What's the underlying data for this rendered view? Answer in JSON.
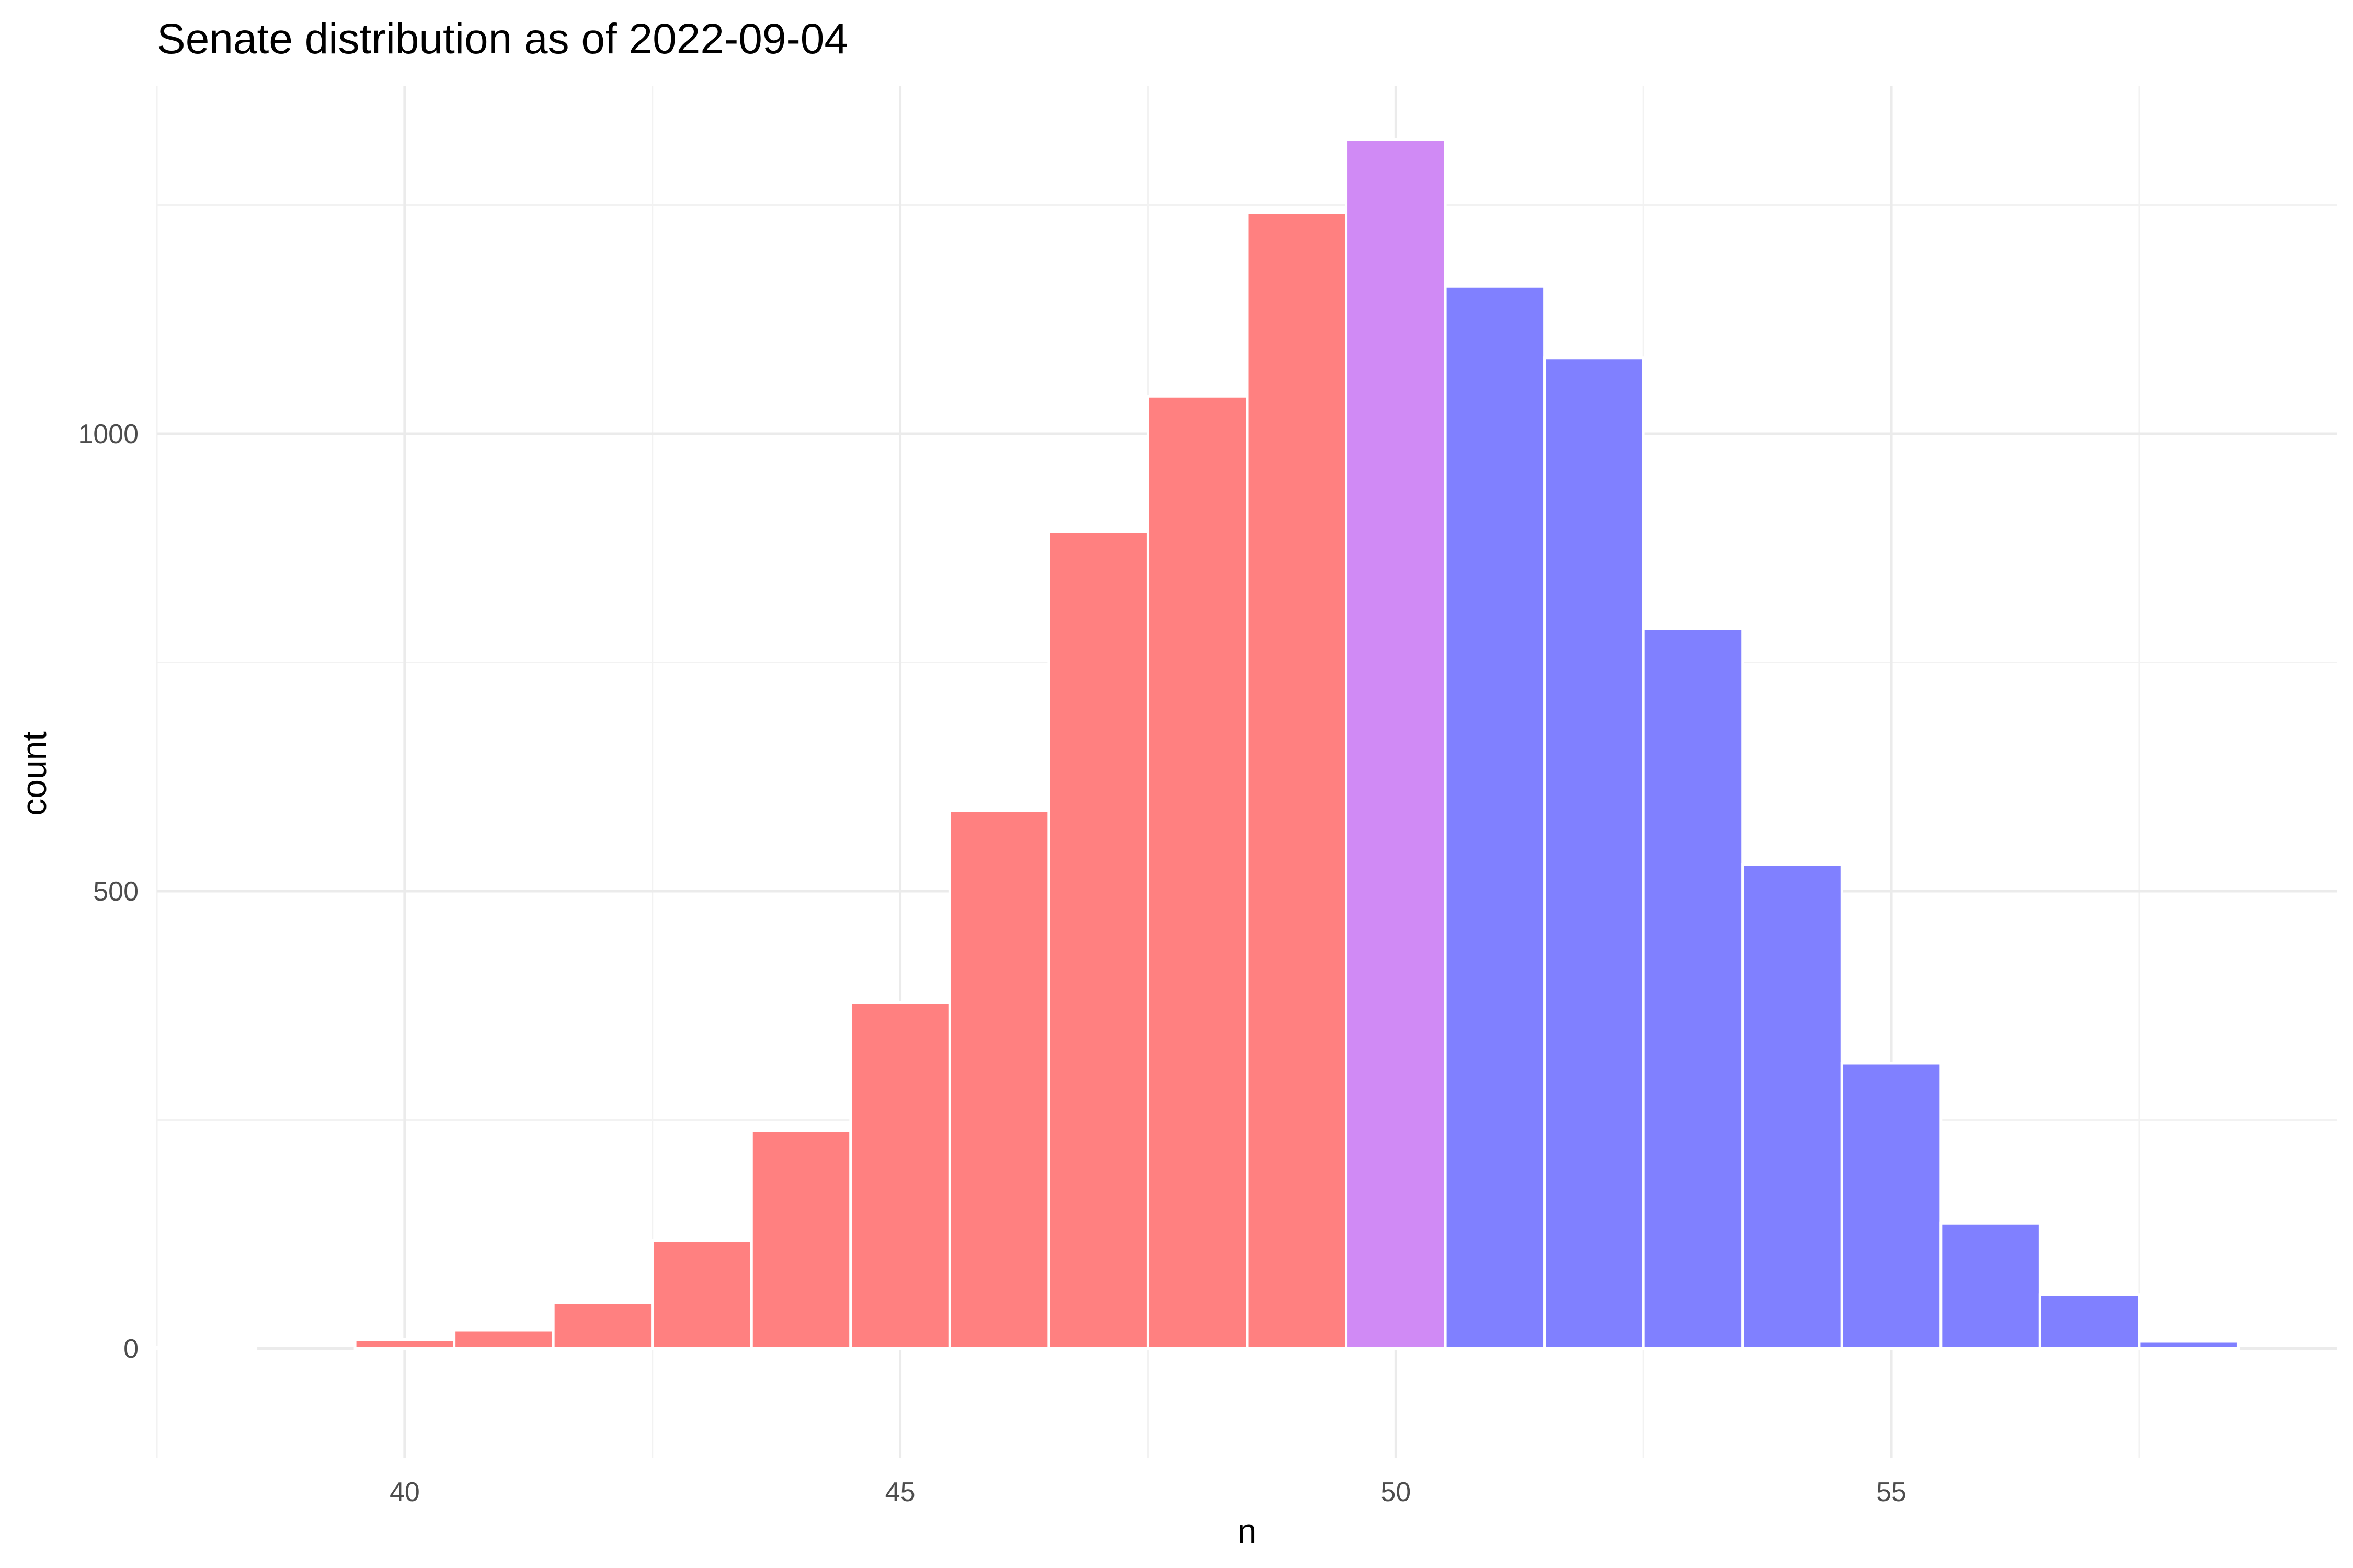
{
  "chart_data": {
    "type": "bar",
    "title": "Senate distribution as of 2022-09-04",
    "xlabel": "n",
    "ylabel": "count",
    "xlim": [
      37.5,
      59.5
    ],
    "ylim": [
      -120,
      1380
    ],
    "x_ticks": [
      40,
      45,
      50,
      55
    ],
    "y_ticks": [
      0,
      500,
      1000
    ],
    "x_tick_labels": [
      "40",
      "45",
      "50",
      "55"
    ],
    "y_tick_labels": [
      "0",
      "500",
      "1000"
    ],
    "grid": true,
    "legend": "none",
    "colors": {
      "R": "#ff8080",
      "tie": "#d08af5",
      "D": "#8080ff"
    },
    "bins": [
      {
        "x": 38,
        "count": 1,
        "party": "R"
      },
      {
        "x": 40,
        "count": 10,
        "party": "R"
      },
      {
        "x": 41,
        "count": 20,
        "party": "R"
      },
      {
        "x": 42,
        "count": 50,
        "party": "R"
      },
      {
        "x": 43,
        "count": 118,
        "party": "R"
      },
      {
        "x": 44,
        "count": 238,
        "party": "R"
      },
      {
        "x": 45,
        "count": 378,
        "party": "R"
      },
      {
        "x": 46,
        "count": 588,
        "party": "R"
      },
      {
        "x": 47,
        "count": 893,
        "party": "R"
      },
      {
        "x": 48,
        "count": 1041,
        "party": "R"
      },
      {
        "x": 49,
        "count": 1242,
        "party": "R"
      },
      {
        "x": 50,
        "count": 1322,
        "party": "tie"
      },
      {
        "x": 51,
        "count": 1161,
        "party": "D"
      },
      {
        "x": 52,
        "count": 1083,
        "party": "D"
      },
      {
        "x": 53,
        "count": 787,
        "party": "D"
      },
      {
        "x": 54,
        "count": 529,
        "party": "D"
      },
      {
        "x": 55,
        "count": 312,
        "party": "D"
      },
      {
        "x": 56,
        "count": 137,
        "party": "D"
      },
      {
        "x": 57,
        "count": 59,
        "party": "D"
      },
      {
        "x": 58,
        "count": 8,
        "party": "D"
      }
    ]
  }
}
